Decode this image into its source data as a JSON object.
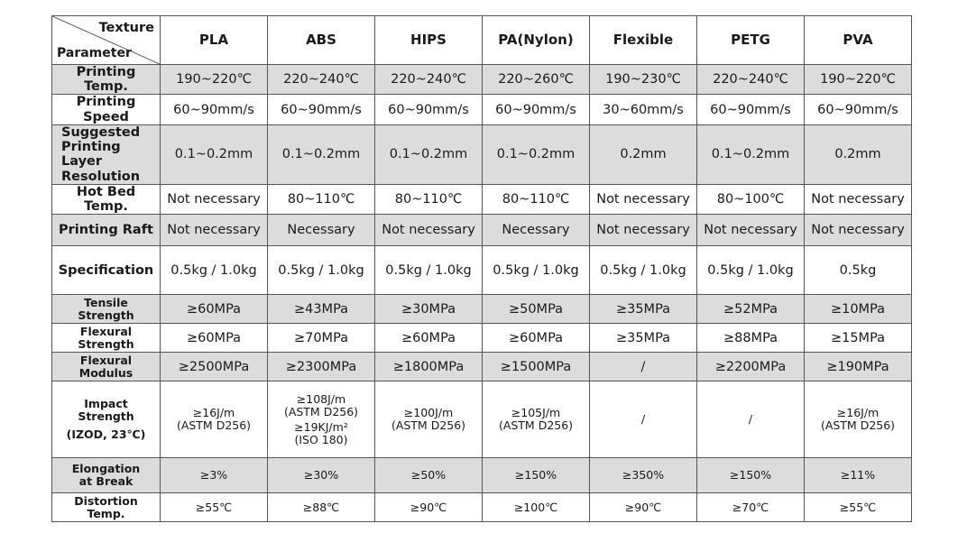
{
  "header": {
    "corner_top": "Texture",
    "corner_bottom": "Parameter",
    "materials": [
      "PLA",
      "ABS",
      "HIPS",
      "PA(Nylon)",
      "Flexible",
      "PETG",
      "PVA"
    ]
  },
  "rows": [
    {
      "param": "Printing Temp.",
      "values": [
        "190~220℃",
        "220~240℃",
        "220~240℃",
        "220~260℃",
        "190~230℃",
        "220~240℃",
        "190~220℃"
      ]
    },
    {
      "param": "Printing Speed",
      "values": [
        "60~90mm/s",
        "60~90mm/s",
        "60~90mm/s",
        "60~90mm/s",
        "30~60mm/s",
        "60~90mm/s",
        "60~90mm/s"
      ]
    },
    {
      "param": [
        "Suggested",
        "Printing Layer",
        "Resolution"
      ],
      "values": [
        "0.1~0.2mm",
        "0.1~0.2mm",
        "0.1~0.2mm",
        "0.1~0.2mm",
        "0.2mm",
        "0.1~0.2mm",
        "0.2mm"
      ]
    },
    {
      "param": "Hot Bed Temp.",
      "values": [
        "Not necessary",
        "80~110℃",
        "80~110℃",
        "80~110℃",
        "Not necessary",
        "80~100℃",
        "Not necessary"
      ]
    },
    {
      "param": "Printing Raft",
      "values": [
        "Not necessary",
        "Necessary",
        "Not necessary",
        "Necessary",
        "Not necessary",
        "Not necessary",
        "Not necessary"
      ]
    },
    {
      "param": "Specification",
      "values": [
        "0.5kg / 1.0kg",
        "0.5kg / 1.0kg",
        "0.5kg / 1.0kg",
        "0.5kg / 1.0kg",
        "0.5kg / 1.0kg",
        "0.5kg / 1.0kg",
        "0.5kg"
      ]
    },
    {
      "param": "Tensile Strength",
      "values": [
        "≥60MPa",
        "≥43MPa",
        "≥30MPa",
        "≥50MPa",
        "≥35MPa",
        "≥52MPa",
        "≥10MPa"
      ]
    },
    {
      "param": "Flexural Strength",
      "values": [
        "≥60MPa",
        "≥70MPa",
        "≥60MPa",
        "≥60MPa",
        "≥35MPa",
        "≥88MPa",
        "≥15MPa"
      ]
    },
    {
      "param": "Flexural Modulus",
      "values": [
        "≥2500MPa",
        "≥2300MPa",
        "≥1800MPa",
        "≥1500MPa",
        "/",
        "≥2200MPa",
        "≥190MPa"
      ]
    },
    {
      "param": [
        "Impact Strength",
        "(IZOD, 23℃)"
      ],
      "values": [
        [
          "≥16J/m",
          "(ASTM D256)"
        ],
        [
          "≥108J/m",
          "(ASTM D256)",
          "≥19KJ/m²",
          "(ISO 180)"
        ],
        [
          "≥100J/m",
          "(ASTM D256)"
        ],
        [
          "≥105J/m",
          "(ASTM D256)"
        ],
        [
          "/"
        ],
        [
          "/"
        ],
        [
          "≥16J/m",
          "(ASTM D256)"
        ]
      ]
    },
    {
      "param": [
        "Elongation",
        "at Break"
      ],
      "values": [
        "≥3%",
        "≥30%",
        "≥50%",
        "≥150%",
        "≥350%",
        "≥150%",
        "≥11%"
      ]
    },
    {
      "param": "Distortion Temp.",
      "values": [
        "≥55℃",
        "≥88℃",
        "≥90℃",
        "≥100℃",
        "≥90℃",
        "≥70℃",
        "≥55℃"
      ]
    }
  ]
}
